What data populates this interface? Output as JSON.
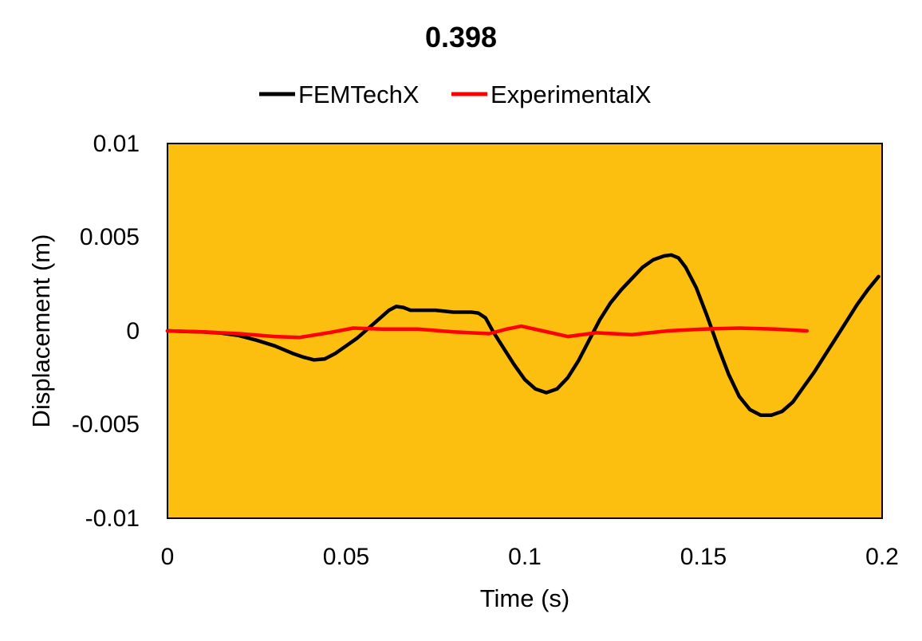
{
  "chart_data": {
    "type": "line",
    "title": "0.398",
    "xlabel": "Time (s)",
    "ylabel": "Displacement (m)",
    "xlim": [
      0,
      0.2
    ],
    "ylim": [
      -0.01,
      0.01
    ],
    "x_ticks": [
      "0",
      "0.05",
      "0.1",
      "0.15",
      "0.2"
    ],
    "y_ticks": [
      "0.01",
      "0.005",
      "0",
      "-0.005",
      "-0.01"
    ],
    "grid": false,
    "legend_position": "top",
    "plot_background": "#FDBF0F",
    "series": [
      {
        "name": "FEMTechX",
        "color": "#000000",
        "points": [
          [
            0,
            0.0
          ],
          [
            0.005,
            -3e-05
          ],
          [
            0.01,
            -6e-05
          ],
          [
            0.015,
            -0.00012
          ],
          [
            0.02,
            -0.00025
          ],
          [
            0.025,
            -0.0005
          ],
          [
            0.03,
            -0.0008
          ],
          [
            0.035,
            -0.0012
          ],
          [
            0.038,
            -0.0014
          ],
          [
            0.041,
            -0.00155
          ],
          [
            0.044,
            -0.0015
          ],
          [
            0.047,
            -0.0012
          ],
          [
            0.05,
            -0.0008
          ],
          [
            0.053,
            -0.0004
          ],
          [
            0.056,
            0.0001
          ],
          [
            0.059,
            0.0006
          ],
          [
            0.062,
            0.0011
          ],
          [
            0.064,
            0.0013
          ],
          [
            0.066,
            0.00125
          ],
          [
            0.068,
            0.0011
          ],
          [
            0.075,
            0.0011
          ],
          [
            0.08,
            0.001
          ],
          [
            0.085,
            0.001
          ],
          [
            0.087,
            0.00095
          ],
          [
            0.089,
            0.0007
          ],
          [
            0.091,
            0.0
          ],
          [
            0.094,
            -0.0009
          ],
          [
            0.097,
            -0.0018
          ],
          [
            0.1,
            -0.0026
          ],
          [
            0.103,
            -0.0031
          ],
          [
            0.106,
            -0.0033
          ],
          [
            0.109,
            -0.0031
          ],
          [
            0.112,
            -0.0025
          ],
          [
            0.115,
            -0.0016
          ],
          [
            0.118,
            -0.0005
          ],
          [
            0.121,
            0.0006
          ],
          [
            0.124,
            0.0015
          ],
          [
            0.127,
            0.0022
          ],
          [
            0.13,
            0.0028
          ],
          [
            0.133,
            0.0034
          ],
          [
            0.136,
            0.0038
          ],
          [
            0.139,
            0.004
          ],
          [
            0.141,
            0.00405
          ],
          [
            0.143,
            0.0039
          ],
          [
            0.145,
            0.0034
          ],
          [
            0.148,
            0.0023
          ],
          [
            0.151,
            0.0008
          ],
          [
            0.154,
            -0.0008
          ],
          [
            0.157,
            -0.0023
          ],
          [
            0.16,
            -0.0035
          ],
          [
            0.163,
            -0.0042
          ],
          [
            0.166,
            -0.0045
          ],
          [
            0.169,
            -0.0045
          ],
          [
            0.172,
            -0.0043
          ],
          [
            0.175,
            -0.0038
          ],
          [
            0.178,
            -0.003
          ],
          [
            0.181,
            -0.0022
          ],
          [
            0.184,
            -0.0013
          ],
          [
            0.187,
            -0.0004
          ],
          [
            0.19,
            0.0005
          ],
          [
            0.193,
            0.0014
          ],
          [
            0.196,
            0.0022
          ],
          [
            0.199,
            0.0029
          ]
        ]
      },
      {
        "name": "ExperimentalX",
        "color": "#FF0000",
        "points": [
          [
            0,
            0.0
          ],
          [
            0.01,
            -5e-05
          ],
          [
            0.02,
            -0.00015
          ],
          [
            0.03,
            -0.0003
          ],
          [
            0.037,
            -0.00035
          ],
          [
            0.045,
            -0.0001
          ],
          [
            0.052,
            0.00015
          ],
          [
            0.06,
            0.0001
          ],
          [
            0.07,
            0.0001
          ],
          [
            0.08,
            -5e-05
          ],
          [
            0.09,
            -0.00015
          ],
          [
            0.095,
            0.0001
          ],
          [
            0.099,
            0.00025
          ],
          [
            0.105,
            0.0
          ],
          [
            0.112,
            -0.0003
          ],
          [
            0.12,
            -0.0001
          ],
          [
            0.13,
            -0.0002
          ],
          [
            0.14,
            0.0
          ],
          [
            0.15,
            0.0001
          ],
          [
            0.16,
            0.00015
          ],
          [
            0.17,
            0.0001
          ],
          [
            0.179,
            0.0
          ]
        ]
      }
    ]
  }
}
